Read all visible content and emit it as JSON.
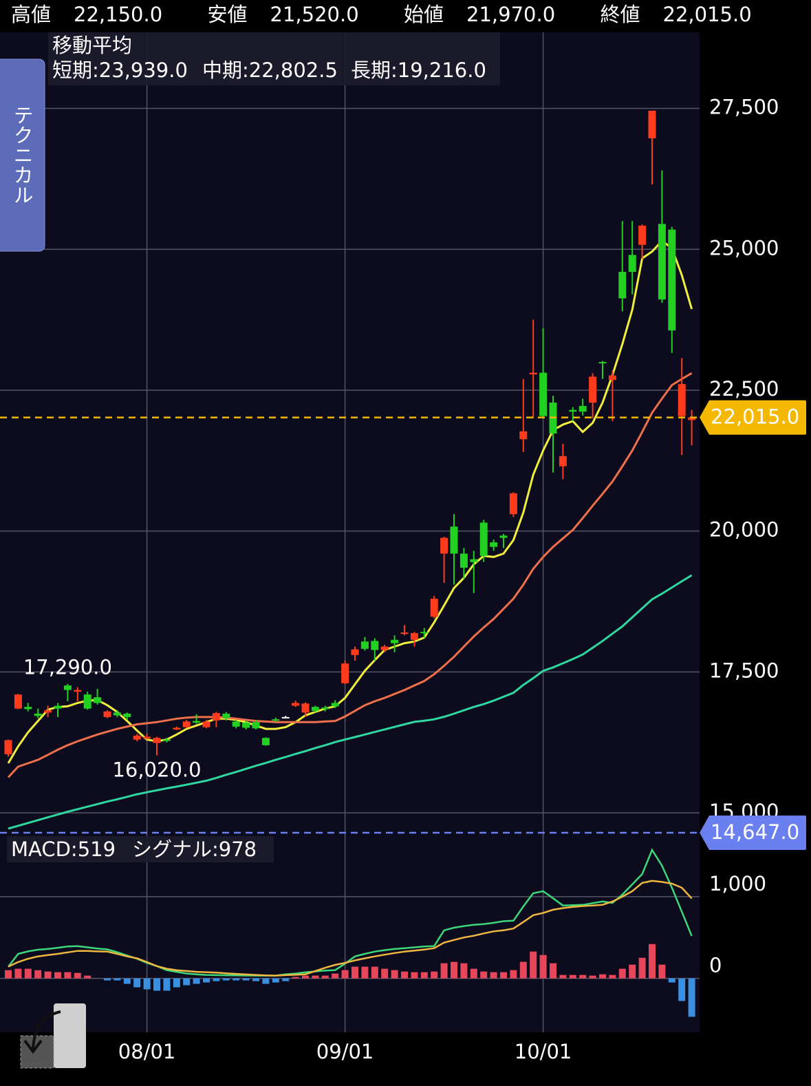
{
  "header": [
    {
      "label": "高値",
      "value": "22,150.0"
    },
    {
      "label": "安値",
      "value": "21,520.0"
    },
    {
      "label": "始値",
      "value": "21,970.0"
    },
    {
      "label": "終値",
      "value": "22,015.0"
    }
  ],
  "technical_button": "テクニカル",
  "chart_data": [
    {
      "type": "candlestick",
      "categories": [
        null,
        null,
        null,
        null,
        null,
        null,
        null,
        null,
        null,
        null,
        null,
        null,
        null,
        null,
        "08/01",
        null,
        null,
        null,
        null,
        null,
        null,
        null,
        null,
        null,
        null,
        null,
        null,
        null,
        null,
        null,
        null,
        null,
        null,
        null,
        "09/01",
        null,
        null,
        null,
        null,
        null,
        null,
        null,
        null,
        null,
        null,
        null,
        null,
        null,
        null,
        null,
        null,
        null,
        null,
        null,
        "10/01",
        null,
        null,
        null,
        null,
        null,
        null,
        null,
        null,
        null,
        null,
        null,
        null,
        null,
        null,
        null
      ],
      "ohlc": [
        [
          16040,
          16300,
          16000,
          16290
        ],
        [
          16850,
          17110,
          16840,
          17100
        ],
        [
          16880,
          16950,
          16800,
          16840
        ],
        [
          16760,
          16850,
          16680,
          16720
        ],
        [
          16780,
          16900,
          16700,
          16820
        ],
        [
          16900,
          16950,
          16700,
          16850
        ],
        [
          17260,
          17290,
          16980,
          17180
        ],
        [
          17150,
          17230,
          16980,
          17180
        ],
        [
          17100,
          17150,
          16830,
          16850
        ],
        [
          17050,
          17200,
          16920,
          16950
        ],
        [
          16700,
          16820,
          16680,
          16800
        ],
        [
          16780,
          16820,
          16700,
          16730
        ],
        [
          16760,
          16780,
          16650,
          16700
        ],
        [
          16300,
          16400,
          16270,
          16370
        ],
        [
          16320,
          16400,
          16300,
          16350
        ],
        [
          16240,
          16350,
          16020,
          16330
        ],
        [
          16300,
          16330,
          16250,
          16280
        ],
        [
          16480,
          16530,
          16470,
          16510
        ],
        [
          16520,
          16650,
          16500,
          16620
        ],
        [
          16630,
          16750,
          16580,
          16600
        ],
        [
          16520,
          16650,
          16500,
          16620
        ],
        [
          16640,
          16790,
          16520,
          16770
        ],
        [
          16760,
          16790,
          16640,
          16680
        ],
        [
          16620,
          16650,
          16500,
          16530
        ],
        [
          16600,
          16640,
          16480,
          16510
        ],
        [
          16610,
          16650,
          16480,
          16500
        ],
        [
          16330,
          16340,
          16190,
          16200
        ],
        [
          16660,
          16690,
          16620,
          16640
        ],
        [
          16700,
          16720,
          16680,
          16700
        ],
        [
          16900,
          16990,
          16880,
          16950
        ],
        [
          16780,
          16960,
          16700,
          16940
        ],
        [
          16880,
          16900,
          16780,
          16810
        ],
        [
          16870,
          16900,
          16800,
          16840
        ],
        [
          16950,
          17000,
          16860,
          16890
        ],
        [
          17300,
          17700,
          17280,
          17650
        ],
        [
          17800,
          17950,
          17700,
          17900
        ],
        [
          18040,
          18120,
          17880,
          17910
        ],
        [
          18050,
          18100,
          17700,
          17890
        ],
        [
          17890,
          17980,
          17850,
          17950
        ],
        [
          18070,
          18150,
          17850,
          18010
        ],
        [
          18180,
          18330,
          18150,
          18200
        ],
        [
          18070,
          18210,
          17950,
          18190
        ],
        [
          18210,
          18280,
          18100,
          18190
        ],
        [
          18480,
          18850,
          18450,
          18800
        ],
        [
          19600,
          19900,
          19080,
          19880
        ],
        [
          20080,
          20300,
          19050,
          19600
        ],
        [
          19600,
          19700,
          19150,
          19350
        ],
        [
          19500,
          19650,
          18900,
          19450
        ],
        [
          20150,
          20200,
          19450,
          19560
        ],
        [
          19800,
          19850,
          19650,
          19720
        ],
        [
          19920,
          19950,
          19700,
          19880
        ],
        [
          20300,
          20690,
          20250,
          20670
        ],
        [
          21630,
          22700,
          21400,
          21770
        ],
        [
          22780,
          23750,
          22000,
          22810
        ],
        [
          22810,
          23600,
          22000,
          22040
        ],
        [
          22280,
          22400,
          21040,
          21730
        ],
        [
          21150,
          21550,
          20920,
          21330
        ],
        [
          22150,
          22200,
          21950,
          22120
        ],
        [
          22220,
          22350,
          22050,
          22120
        ],
        [
          22280,
          22800,
          22000,
          22740
        ],
        [
          23000,
          23020,
          22700,
          22980
        ],
        [
          22680,
          22850,
          21950,
          22760
        ],
        [
          24600,
          25500,
          23900,
          24130
        ],
        [
          24900,
          25500,
          24200,
          24600
        ],
        [
          25080,
          25440,
          24830,
          25420
        ],
        [
          26970,
          27460,
          26150,
          27460
        ],
        [
          25450,
          26400,
          24050,
          24110
        ],
        [
          25350,
          25400,
          23160,
          23560
        ],
        [
          22040,
          23070,
          21350,
          22610
        ],
        [
          21970,
          22150,
          21520,
          22015
        ]
      ],
      "up_color": "#ff3b1e",
      "down_color": "#22d022",
      "doji_color": "#ffffff",
      "ylim": [
        14647,
        28850
      ],
      "yticks": [
        {
          "value": 15000,
          "label": "15,000"
        },
        {
          "value": 17500,
          "label": "17,500"
        },
        {
          "value": 20000,
          "label": "20,000"
        },
        {
          "value": 22500,
          "label": "22,500"
        },
        {
          "value": 25000,
          "label": "25,000"
        },
        {
          "value": 27500,
          "label": "27,500"
        }
      ],
      "grid": true,
      "ma_title": "移動平均",
      "series": [
        {
          "label": "短期:23,939.0",
          "color": "#f2f03c",
          "values": [
            15880,
            16180,
            16430,
            16630,
            16830,
            16880,
            16890,
            16950,
            16990,
            17000,
            16910,
            16790,
            16630,
            16460,
            16300,
            16270,
            16300,
            16390,
            16490,
            16550,
            16610,
            16670,
            16670,
            16650,
            16610,
            16550,
            16490,
            16490,
            16520,
            16610,
            16730,
            16790,
            16850,
            16890,
            17040,
            17280,
            17520,
            17710,
            17890,
            17950,
            18010,
            18040,
            18110,
            18380,
            18680,
            18990,
            19170,
            19410,
            19560,
            19540,
            19600,
            19840,
            20330,
            21000,
            21430,
            21790,
            21890,
            21950,
            21760,
            21920,
            22280,
            22770,
            23320,
            23930,
            24840,
            24960,
            25150,
            25020,
            24540,
            23939
          ]
        },
        {
          "label": "中期:22,802.5",
          "color": "#f0704a",
          "values": [
            15630,
            15820,
            15880,
            15940,
            16030,
            16120,
            16200,
            16270,
            16330,
            16390,
            16440,
            16490,
            16530,
            16570,
            16590,
            16610,
            16640,
            16670,
            16690,
            16700,
            16700,
            16700,
            16690,
            16670,
            16650,
            16630,
            16620,
            16610,
            16610,
            16610,
            16610,
            16610,
            16620,
            16630,
            16710,
            16810,
            16910,
            16980,
            17040,
            17110,
            17180,
            17260,
            17340,
            17460,
            17610,
            17770,
            17950,
            18130,
            18290,
            18440,
            18620,
            18800,
            19050,
            19330,
            19540,
            19720,
            19870,
            20020,
            20230,
            20450,
            20660,
            20880,
            21150,
            21430,
            21760,
            22100,
            22350,
            22590,
            22700,
            22802.5
          ]
        },
        {
          "label": "長期:19,216.0",
          "color": "#2ed8a0",
          "values": [
            14720,
            14770,
            14820,
            14870,
            14920,
            14970,
            15020,
            15065,
            15110,
            15155,
            15200,
            15240,
            15285,
            15330,
            15365,
            15400,
            15435,
            15465,
            15500,
            15535,
            15570,
            15620,
            15675,
            15725,
            15780,
            15835,
            15885,
            15940,
            15990,
            16045,
            16095,
            16150,
            16200,
            16255,
            16300,
            16345,
            16390,
            16435,
            16480,
            16525,
            16570,
            16615,
            16635,
            16660,
            16705,
            16760,
            16820,
            16880,
            16930,
            16990,
            17060,
            17130,
            17270,
            17390,
            17520,
            17580,
            17655,
            17730,
            17810,
            17930,
            18050,
            18180,
            18310,
            18470,
            18630,
            18790,
            18890,
            19000,
            19110,
            19216
          ]
        }
      ],
      "markers": [
        {
          "value": 22015,
          "label": "22,015.0",
          "color": "#f5b800"
        },
        {
          "value": 14647,
          "label": "14,647.0",
          "color": "#6b80f0"
        }
      ],
      "annotations": [
        {
          "label": "17,290.0",
          "value": 17290,
          "at": 6
        },
        {
          "label": "16,020.0",
          "value": 16020,
          "at": 15
        }
      ]
    },
    {
      "type": "macd",
      "ylim": [
        -660,
        1765
      ],
      "yticks": [
        0,
        {
          "value": 1000,
          "label": "1,000"
        }
      ],
      "grid": true,
      "series": [
        {
          "label": "MACD:519",
          "color": "#3cd87a",
          "values": [
            143,
            300,
            330,
            350,
            360,
            375,
            390,
            395,
            380,
            365,
            355,
            320,
            280,
            240,
            190,
            150,
            100,
            80,
            60,
            50,
            42,
            40,
            38,
            36,
            35,
            34,
            34,
            34,
            50,
            59,
            75,
            85,
            95,
            101,
            180,
            269,
            300,
            328,
            345,
            360,
            370,
            380,
            390,
            395,
            588,
            620,
            640,
            655,
            664,
            680,
            700,
            706,
            880,
            1042,
            1067,
            980,
            891,
            895,
            899,
            920,
            941,
            924,
            1025,
            1150,
            1277,
            1571,
            1378,
            1109,
            815,
            519
          ]
        },
        {
          "label": "シグナル:978",
          "color": "#f0b840",
          "values": [
            143,
            200,
            240,
            269,
            285,
            300,
            318,
            336,
            335,
            330,
            328,
            300,
            270,
            245,
            200,
            150,
            118,
            100,
            90,
            80,
            76,
            70,
            62,
            55,
            48,
            42,
            36,
            34,
            40,
            44,
            50,
            90,
            130,
            165,
            190,
            220,
            245,
            269,
            290,
            310,
            328,
            340,
            353,
            370,
            437,
            470,
            500,
            521,
            550,
            575,
            588,
            610,
            690,
            773,
            800,
            840,
            860,
            875,
            885,
            891,
            900,
            941,
            1000,
            1067,
            1168,
            1193,
            1180,
            1160,
            1109,
            978
          ]
        }
      ],
      "histogram": {
        "up_color": "#e8475a",
        "down_color": "#3a8fe0",
        "values": [
          100,
          118,
          118,
          100,
          84,
          76,
          76,
          67,
          34,
          0,
          -25,
          -25,
          -67,
          -109,
          -134,
          -151,
          -151,
          -109,
          -84,
          -67,
          -50,
          -34,
          -25,
          -25,
          -25,
          -34,
          -67,
          -50,
          -34,
          17,
          34,
          34,
          34,
          59,
          101,
          143,
          143,
          143,
          118,
          101,
          84,
          76,
          76,
          84,
          185,
          202,
          185,
          118,
          84,
          76,
          76,
          101,
          202,
          328,
          286,
          185,
          42,
          42,
          42,
          34,
          50,
          42,
          118,
          168,
          252,
          420,
          168,
          -50,
          -277,
          -470
        ]
      }
    }
  ]
}
